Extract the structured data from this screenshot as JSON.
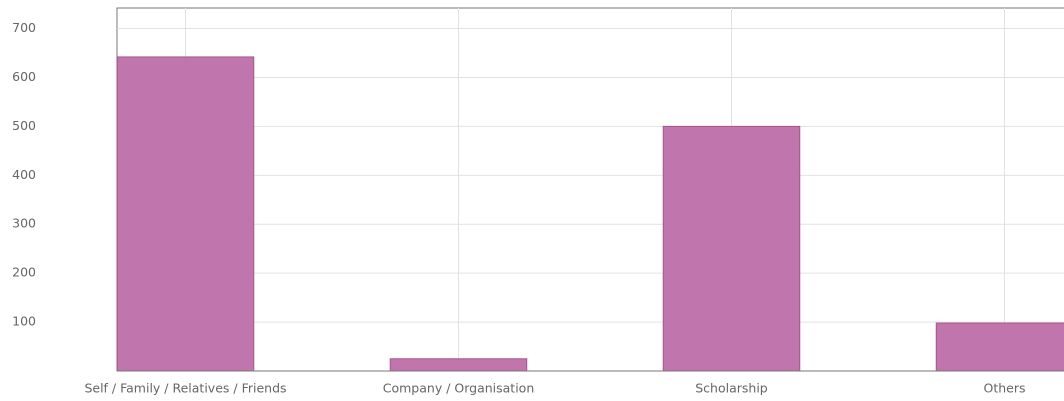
{
  "chart_data": {
    "type": "bar",
    "categories": [
      "Self / Family / Relatives / Friends",
      "Company / Organisation",
      "Scholarship",
      "Others"
    ],
    "values": [
      642,
      25,
      500,
      98
    ],
    "color": "#bd6fa8",
    "ylim": [
      0,
      742
    ],
    "yticks": [
      100,
      200,
      300,
      400,
      500,
      600,
      700
    ],
    "grid": true
  }
}
